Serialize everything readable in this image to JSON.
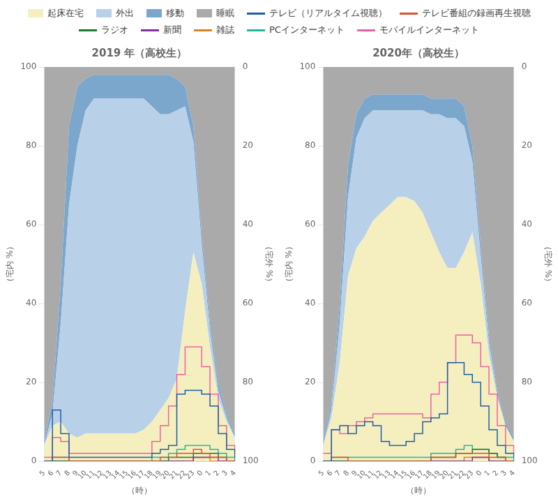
{
  "chart_data": [
    {
      "type": "line",
      "title": "2019 年（高校生）",
      "xlabel": "（時）",
      "ylabel": "（宅内 %）",
      "y2label": "（宅外 %）",
      "categories": [
        5,
        6,
        7,
        8,
        9,
        10,
        11,
        12,
        13,
        14,
        15,
        16,
        17,
        18,
        19,
        20,
        21,
        22,
        23,
        0,
        1,
        2,
        3,
        4
      ],
      "ylim": [
        0,
        100
      ],
      "yticks": [
        0,
        20,
        40,
        60,
        80,
        100
      ],
      "y2lim": [
        100,
        0
      ],
      "y2ticks": [
        100,
        80,
        60,
        40,
        20,
        0
      ],
      "grid": "y",
      "stacked": true,
      "legend": "top",
      "series": [
        {
          "name": "起床在宅",
          "type": "area",
          "color": "#f5efc0",
          "values": [
            4,
            9,
            10,
            7,
            6,
            7,
            7,
            7,
            7,
            7,
            7,
            7,
            8,
            10,
            13,
            16,
            21,
            38,
            53,
            45,
            29,
            16,
            10,
            6
          ]
        },
        {
          "name": "外出",
          "type": "area",
          "color": "#b8d0e8",
          "values": [
            0,
            3,
            25,
            58,
            74,
            82,
            85,
            85,
            85,
            85,
            85,
            85,
            84,
            80,
            75,
            72,
            68,
            52,
            28,
            10,
            4,
            2,
            1,
            0
          ]
        },
        {
          "name": "移動",
          "type": "area",
          "color": "#7ba7cc",
          "values": [
            1,
            3,
            10,
            20,
            15,
            8,
            6,
            6,
            6,
            6,
            6,
            6,
            6,
            8,
            10,
            10,
            8,
            5,
            4,
            3,
            2,
            2,
            1,
            1
          ]
        },
        {
          "name": "睡眠",
          "type": "area",
          "color": "#aaaaaa",
          "values": [
            95,
            85,
            55,
            15,
            5,
            3,
            2,
            2,
            2,
            2,
            2,
            2,
            2,
            2,
            2,
            2,
            3,
            5,
            15,
            42,
            65,
            80,
            88,
            93
          ]
        },
        {
          "name": "テレビ（リアルタイム視聴）",
          "type": "line",
          "line_style": "step",
          "color": "#1a5fa8",
          "values": [
            0,
            13,
            7,
            1,
            1,
            1,
            1,
            1,
            1,
            1,
            1,
            1,
            1,
            2,
            3,
            4,
            17,
            18,
            18,
            17,
            14,
            7,
            3,
            1
          ]
        },
        {
          "name": "テレビ番組の録画再生視聴",
          "type": "line",
          "line_style": "step",
          "color": "#e05030",
          "values": [
            0,
            1,
            1,
            0,
            0,
            0,
            0,
            0,
            0,
            0,
            0,
            0,
            0,
            0,
            1,
            1,
            2,
            2,
            3,
            2,
            1,
            1,
            0,
            0
          ]
        },
        {
          "name": "ラジオ",
          "type": "line",
          "line_style": "step",
          "color": "#1a7a30",
          "values": [
            0,
            0,
            0,
            0,
            0,
            0,
            0,
            0,
            0,
            0,
            0,
            0,
            0,
            0,
            0,
            1,
            1,
            1,
            2,
            2,
            2,
            1,
            0,
            0
          ]
        },
        {
          "name": "新聞",
          "type": "line",
          "line_style": "step",
          "color": "#8030a0",
          "values": [
            0,
            0,
            0,
            0,
            0,
            0,
            0,
            0,
            0,
            0,
            0,
            0,
            0,
            0,
            0,
            0,
            0,
            0,
            1,
            1,
            1,
            0,
            0,
            0
          ]
        },
        {
          "name": "雑誌",
          "type": "line",
          "line_style": "step",
          "color": "#e08020",
          "values": [
            0,
            0,
            0,
            0,
            0,
            0,
            0,
            0,
            0,
            0,
            0,
            0,
            0,
            0,
            0,
            0,
            0,
            0,
            1,
            1,
            0,
            0,
            0,
            0
          ]
        },
        {
          "name": "PCインターネット",
          "type": "line",
          "line_style": "step",
          "color": "#20b898",
          "values": [
            0,
            1,
            1,
            0,
            0,
            0,
            0,
            0,
            0,
            0,
            0,
            0,
            0,
            1,
            1,
            2,
            3,
            4,
            4,
            4,
            3,
            2,
            1,
            0
          ]
        },
        {
          "name": "モバイルインターネット",
          "type": "line",
          "line_style": "step",
          "color": "#f060a0",
          "values": [
            1,
            6,
            5,
            2,
            2,
            2,
            2,
            2,
            2,
            2,
            2,
            2,
            2,
            5,
            9,
            14,
            22,
            29,
            29,
            24,
            17,
            9,
            4,
            2
          ]
        }
      ]
    },
    {
      "type": "line",
      "title": "2020年（高校生）",
      "xlabel": "（時）",
      "ylabel": "（宅内 %）",
      "y2label": "（宅外 %）",
      "categories": [
        5,
        6,
        7,
        8,
        9,
        10,
        11,
        12,
        13,
        14,
        15,
        16,
        17,
        18,
        19,
        20,
        21,
        22,
        23,
        0,
        1,
        2,
        3,
        4
      ],
      "ylim": [
        0,
        100
      ],
      "yticks": [
        0,
        20,
        40,
        60,
        80,
        100
      ],
      "y2lim": [
        100,
        0
      ],
      "y2ticks": [
        100,
        80,
        60,
        40,
        20,
        0
      ],
      "grid": "y",
      "stacked": true,
      "series": [
        {
          "name": "起床在宅",
          "type": "area",
          "color": "#f5efc0",
          "values": [
            4,
            11,
            25,
            47,
            54,
            57,
            61,
            63,
            65,
            67,
            67,
            66,
            63,
            58,
            53,
            49,
            49,
            53,
            58,
            45,
            27,
            16,
            9,
            5
          ]
        },
        {
          "name": "外出",
          "type": "area",
          "color": "#b8d0e8",
          "values": [
            0,
            2,
            10,
            20,
            28,
            30,
            28,
            26,
            24,
            22,
            22,
            23,
            26,
            30,
            35,
            38,
            38,
            32,
            18,
            7,
            3,
            1,
            0,
            0
          ]
        },
        {
          "name": "移動",
          "type": "area",
          "color": "#7ba7cc",
          "values": [
            1,
            2,
            5,
            8,
            6,
            5,
            4,
            4,
            4,
            4,
            4,
            4,
            4,
            4,
            4,
            5,
            5,
            5,
            4,
            3,
            2,
            1,
            1,
            1
          ]
        },
        {
          "name": "睡眠",
          "type": "area",
          "color": "#aaaaaa",
          "values": [
            95,
            85,
            60,
            25,
            12,
            8,
            7,
            7,
            7,
            7,
            7,
            7,
            7,
            8,
            8,
            8,
            8,
            10,
            20,
            45,
            68,
            82,
            90,
            94
          ]
        },
        {
          "name": "テレビ（リアルタイム視聴）",
          "type": "line",
          "line_style": "step",
          "color": "#1a5fa8",
          "values": [
            0,
            8,
            9,
            7,
            9,
            10,
            9,
            5,
            4,
            4,
            5,
            7,
            10,
            11,
            12,
            25,
            25,
            22,
            20,
            14,
            8,
            4,
            2,
            1
          ]
        },
        {
          "name": "テレビ番組の録画再生視聴",
          "type": "line",
          "line_style": "step",
          "color": "#e05030",
          "values": [
            0,
            1,
            1,
            0,
            0,
            0,
            0,
            0,
            0,
            0,
            0,
            0,
            0,
            1,
            1,
            1,
            2,
            2,
            2,
            2,
            1,
            1,
            0,
            0
          ]
        },
        {
          "name": "ラジオ",
          "type": "line",
          "line_style": "step",
          "color": "#1a7a30",
          "values": [
            0,
            0,
            0,
            0,
            0,
            0,
            0,
            0,
            0,
            0,
            0,
            0,
            0,
            1,
            1,
            1,
            2,
            2,
            3,
            3,
            2,
            1,
            0,
            0
          ]
        },
        {
          "name": "新聞",
          "type": "line",
          "line_style": "step",
          "color": "#8030a0",
          "values": [
            0,
            0,
            0,
            0,
            0,
            0,
            0,
            0,
            0,
            0,
            0,
            0,
            0,
            0,
            0,
            0,
            0,
            0,
            1,
            1,
            0,
            0,
            0,
            0
          ]
        },
        {
          "name": "雑誌",
          "type": "line",
          "line_style": "step",
          "color": "#e08020",
          "values": [
            0,
            0,
            0,
            0,
            0,
            0,
            0,
            0,
            0,
            0,
            0,
            0,
            0,
            0,
            0,
            0,
            0,
            1,
            1,
            1,
            0,
            0,
            0,
            0
          ]
        },
        {
          "name": "PCインターネット",
          "type": "line",
          "line_style": "step",
          "color": "#20b898",
          "values": [
            0,
            1,
            1,
            1,
            1,
            1,
            1,
            1,
            1,
            1,
            1,
            1,
            1,
            2,
            2,
            2,
            3,
            4,
            3,
            3,
            2,
            1,
            1,
            0
          ]
        },
        {
          "name": "モバイルインターネット",
          "type": "line",
          "line_style": "step",
          "color": "#f060a0",
          "values": [
            2,
            8,
            7,
            9,
            10,
            11,
            12,
            12,
            12,
            12,
            12,
            12,
            11,
            17,
            20,
            25,
            32,
            32,
            30,
            24,
            17,
            9,
            4,
            2
          ]
        }
      ]
    }
  ]
}
